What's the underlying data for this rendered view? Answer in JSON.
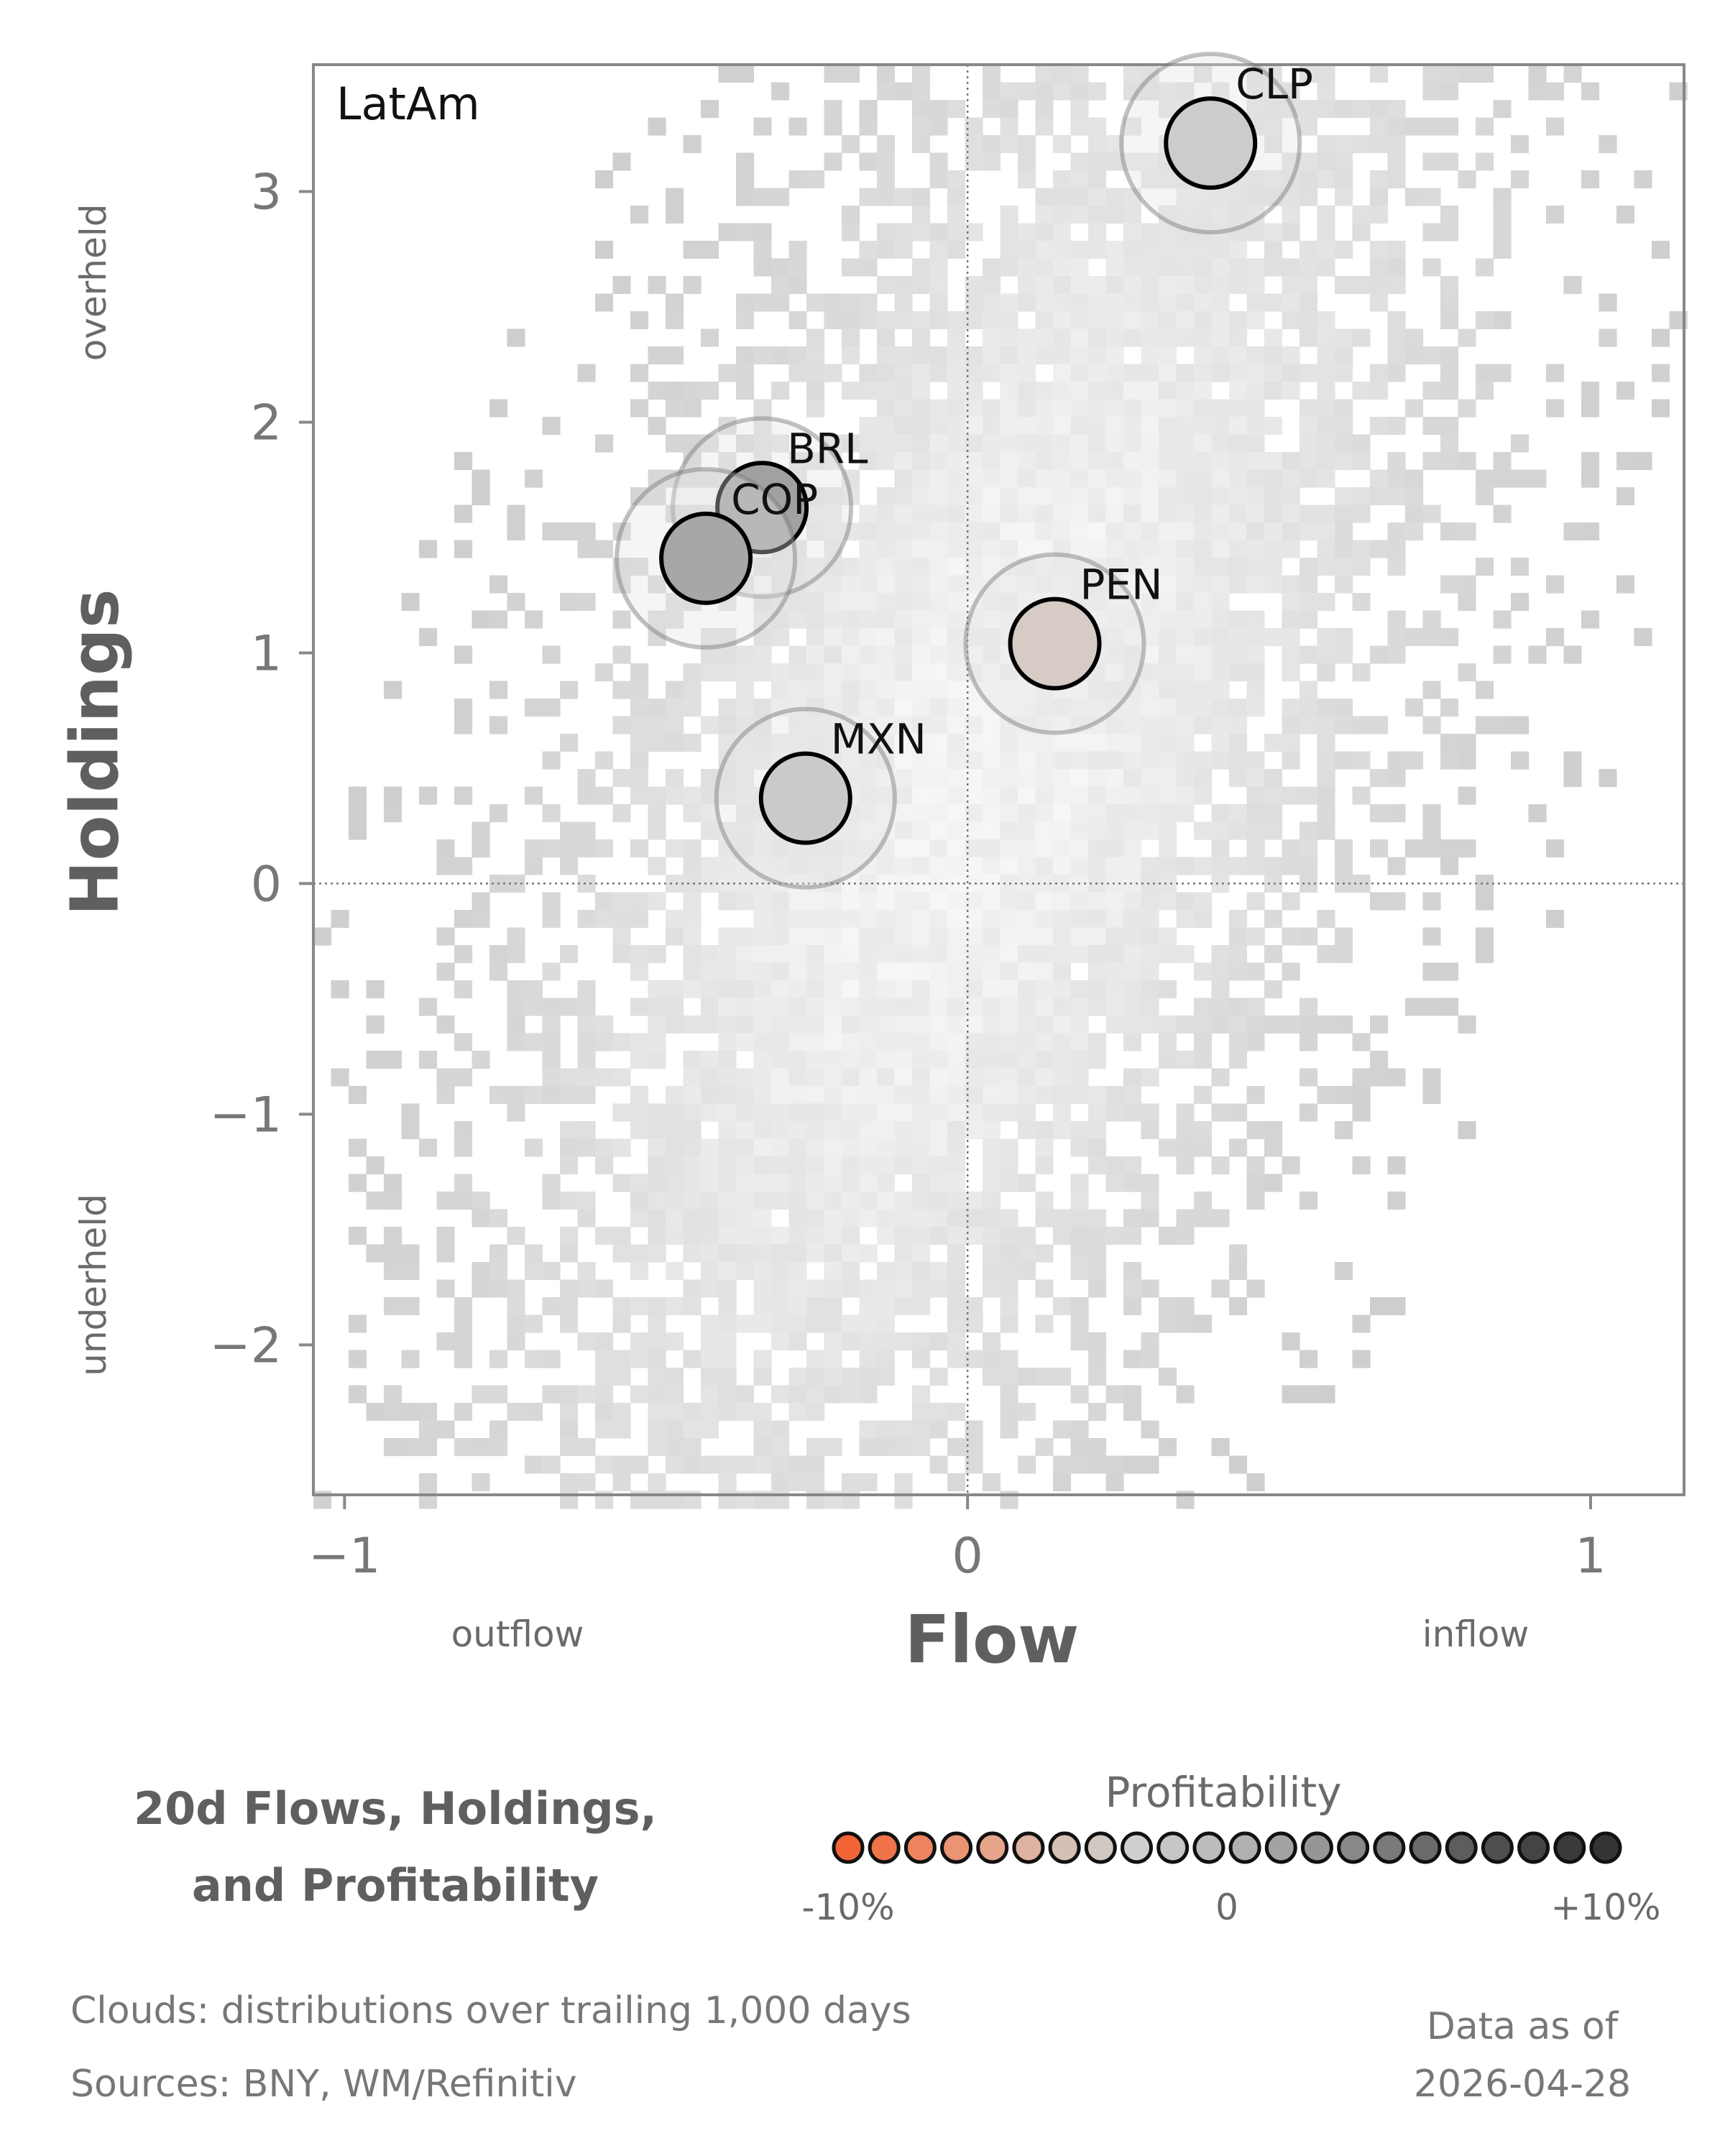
{
  "chart_data": {
    "type": "scatter",
    "panel_label": "LatAm",
    "xlabel": "Flow",
    "ylabel": "Holdings",
    "xlim": [
      -1.05,
      1.15
    ],
    "ylim": [
      -2.65,
      3.55
    ],
    "x_ticks": [
      "−1",
      "0",
      "1"
    ],
    "y_ticks": [
      "−2",
      "−1",
      "0",
      "1",
      "2",
      "3"
    ],
    "x_direction_labels": {
      "negative": "outflow",
      "positive": "inflow"
    },
    "y_direction_labels": {
      "positive": "overheld",
      "negative": "underheld"
    },
    "reference_lines": {
      "x": 0,
      "y": 0
    },
    "background": "heatmap cloud of trailing 1,000-day distributions",
    "points": [
      {
        "label": "CLP",
        "x": 0.39,
        "y": 3.21,
        "profitability": 2,
        "color": "#cbcdcc"
      },
      {
        "label": "BRL",
        "x": -0.33,
        "y": 1.63,
        "profitability": 6,
        "color": "#a1a1a1"
      },
      {
        "label": "COP",
        "x": -0.42,
        "y": 1.41,
        "profitability": 6,
        "color": "#a7a7a7"
      },
      {
        "label": "PEN",
        "x": 0.14,
        "y": 1.04,
        "profitability": -2,
        "color": "#d6cbc5"
      },
      {
        "label": "MXN",
        "x": -0.26,
        "y": 0.37,
        "profitability": 2,
        "color": "#c9cbca"
      }
    ],
    "grid": false
  },
  "subtitle": {
    "line1": "20d Flows, Holdings,",
    "line2": "and Profitability"
  },
  "legend": {
    "title": "Profitability",
    "labels": {
      "min": "-10%",
      "mid": "0",
      "max": "+10%"
    },
    "colors": [
      "#f26436",
      "#f0734a",
      "#ee8360",
      "#ea9475",
      "#e6a58b",
      "#deb3a1",
      "#d6c0b4",
      "#d0c8c3",
      "#cfcfcf",
      "#c6c6c6",
      "#bcbcbc",
      "#b0b0b0",
      "#a3a3a3",
      "#969696",
      "#888888",
      "#7a7a7a",
      "#6b6b6b",
      "#5d5d5d",
      "#4f4f4f",
      "#444444",
      "#3a3a3a",
      "#343434"
    ]
  },
  "footer": {
    "clouds": "Clouds:  distributions over trailing 1,000 days",
    "sources": "Sources:  BNY, WM/Refinitiv",
    "asof_line1": "Data as of",
    "asof_line2": "2026-04-28"
  }
}
